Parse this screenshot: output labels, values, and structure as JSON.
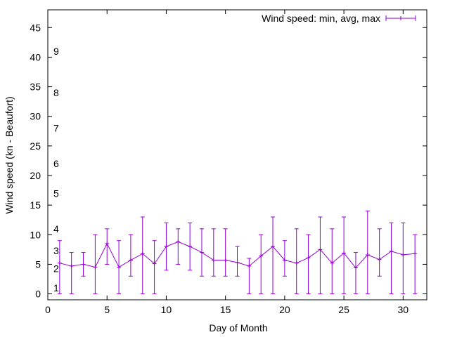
{
  "chart_data": {
    "type": "line",
    "xlabel": "Day of Month",
    "ylabel": "Wind speed (kn - Beaufort)",
    "xlim": [
      0,
      32
    ],
    "ylim": [
      -1,
      48
    ],
    "xticks": [
      0,
      5,
      10,
      15,
      20,
      25,
      30
    ],
    "yticks": [
      0,
      5,
      10,
      15,
      20,
      25,
      30,
      35,
      40,
      45
    ],
    "grid": false,
    "legend_position": "top-right",
    "beaufort_labels": [
      {
        "label": "1",
        "y": 1.0
      },
      {
        "label": "2",
        "y": 4.3
      },
      {
        "label": "3",
        "y": 7.3
      },
      {
        "label": "4",
        "y": 11.0
      },
      {
        "label": "5",
        "y": 17.0
      },
      {
        "label": "6",
        "y": 22.0
      },
      {
        "label": "7",
        "y": 28.0
      },
      {
        "label": "8",
        "y": 34.0
      },
      {
        "label": "9",
        "y": 41.0
      }
    ],
    "series": [
      {
        "name": "Wind speed: min, avg, max",
        "color": "#9400d3",
        "x": [
          1,
          2,
          3,
          4,
          5,
          6,
          7,
          8,
          9,
          10,
          11,
          12,
          13,
          14,
          15,
          16,
          17,
          18,
          19,
          20,
          21,
          22,
          23,
          24,
          25,
          26,
          27,
          28,
          29,
          30,
          31
        ],
        "avg": [
          5.2,
          4.7,
          5.0,
          4.5,
          8.5,
          4.5,
          5.7,
          6.8,
          5.1,
          8.0,
          8.8,
          8.0,
          7.0,
          5.7,
          5.7,
          5.3,
          4.7,
          6.4,
          8.0,
          5.7,
          5.2,
          6.1,
          7.5,
          5.2,
          6.9,
          4.4,
          6.6,
          5.8,
          7.2,
          6.6,
          6.8
        ],
        "min": [
          0,
          0,
          3,
          0,
          5,
          0,
          3,
          0,
          0,
          4,
          5,
          4,
          3,
          3,
          3,
          3,
          0,
          0,
          0,
          3,
          0,
          0,
          0,
          0,
          0,
          0,
          0,
          3,
          0,
          0,
          0
        ],
        "max": [
          9,
          7,
          7,
          10,
          11,
          9,
          10,
          13,
          9,
          12,
          11,
          12,
          11,
          11,
          11,
          8,
          6,
          10,
          13,
          9,
          11,
          10,
          13,
          11,
          13,
          7,
          14,
          11,
          12,
          12,
          10
        ]
      }
    ]
  }
}
